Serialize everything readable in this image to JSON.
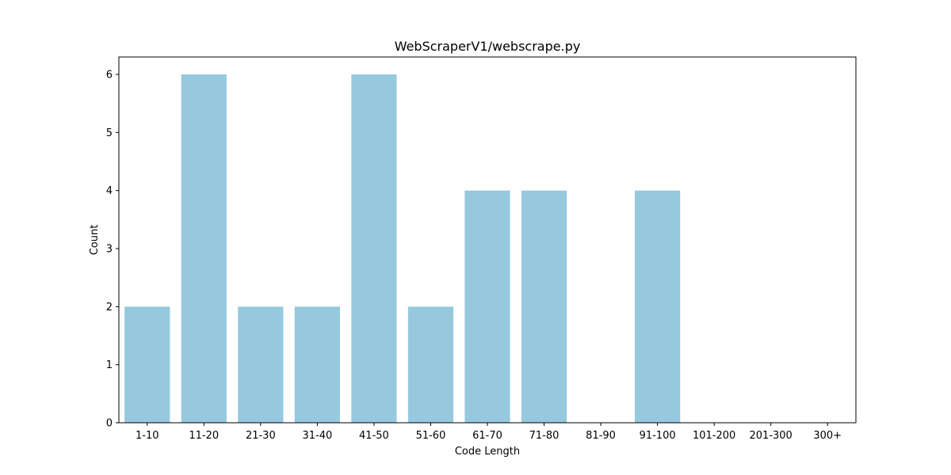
{
  "chart_data": {
    "type": "bar",
    "title": "WebScraperV1/webscrape.py",
    "xlabel": "Code Length",
    "ylabel": "Count",
    "categories": [
      "1-10",
      "11-20",
      "21-30",
      "31-40",
      "41-50",
      "51-60",
      "61-70",
      "71-80",
      "81-90",
      "91-100",
      "101-200",
      "201-300",
      "300+"
    ],
    "values": [
      2,
      6,
      2,
      2,
      6,
      2,
      4,
      4,
      0,
      4,
      0,
      0,
      0
    ],
    "yticks": [
      "0",
      "1",
      "2",
      "3",
      "4",
      "5",
      "6"
    ],
    "ylim": [
      0,
      6.3
    ],
    "bar_color": "#96c9de",
    "grid": false,
    "legend": "none"
  }
}
